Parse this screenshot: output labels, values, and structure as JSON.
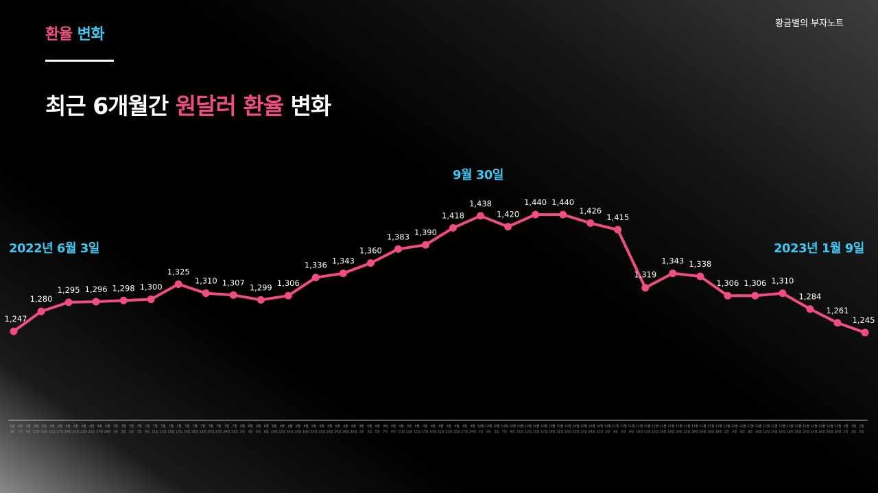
{
  "header": {
    "tag_part1": "환율",
    "tag_part2": "변화",
    "brand": "황금별의 부자노트",
    "title_part1": "최근 6개월간",
    "title_part2": "원달러 환율",
    "title_part3": "변화"
  },
  "callouts": {
    "start": "2022년 6월 3일",
    "peak": "9월 30일",
    "end": "2023년 1월 9일"
  },
  "colors": {
    "line": "#f04d86",
    "accent": "#3ec8f2"
  },
  "chart_data": {
    "type": "line",
    "title": "최근 6개월간 원달러 환율 변화",
    "values": [
      1247,
      1280,
      1295,
      1296,
      1298,
      1300,
      1325,
      1310,
      1307,
      1299,
      1306,
      1336,
      1343,
      1360,
      1383,
      1390,
      1418,
      1438,
      1420,
      1440,
      1440,
      1426,
      1415,
      1319,
      1343,
      1338,
      1306,
      1306,
      1310,
      1284,
      1261,
      1245
    ],
    "data_labels": [
      "1,247",
      "1,280",
      "1,295",
      "1,296",
      "1,298",
      "1,300",
      "1,325",
      "1,310",
      "1,307",
      "1,299",
      "1,306",
      "1,336",
      "1,343",
      "1,360",
      "1,383",
      "1,390",
      "1,418",
      "1,438",
      "1,420",
      "1,440",
      "1,440",
      "1,426",
      "1,415",
      "1,319",
      "1,343",
      "1,338",
      "1,306",
      "1,306",
      "1,310",
      "1,284",
      "1,261",
      "1,245"
    ],
    "first_date": "2022년 6월 3일",
    "last_date": "2023년 1월 9일",
    "x_axis_ticks": [
      "6월 3일",
      "6월 7일",
      "6월 9일",
      "6월 11일",
      "6월 13일",
      "6월 15일",
      "6월 17일",
      "6월 19일",
      "6월 21일",
      "6월 23일",
      "6월 25일",
      "6월 27일",
      "6월 29일",
      "7월 1일",
      "7월 3일",
      "7월 5일",
      "7월 7일",
      "7월 9일",
      "7월 11일",
      "7월 13일",
      "7월 15일",
      "7월 17일",
      "7월 19일",
      "7월 21일",
      "7월 23일",
      "7월 25일",
      "7월 27일",
      "7월 29일",
      "7월 31일",
      "8월 2일",
      "8월 4일",
      "8월 6일",
      "8월 8일",
      "8월 10일",
      "8월 12일",
      "8월 14일",
      "8월 16일",
      "8월 18일",
      "8월 20일",
      "8월 22일",
      "8월 24일",
      "8월 26일",
      "8월 28일",
      "8월 30일",
      "9월 1일",
      "9월 3일",
      "9월 5일",
      "9월 7일",
      "9월 9일",
      "9월 11일",
      "9월 13일",
      "9월 15일",
      "9월 17일",
      "9월 19일",
      "9월 21일",
      "9월 23일",
      "9월 25일",
      "9월 27일",
      "9월 29일",
      "10월 1일",
      "10월 3일",
      "10월 5일",
      "10월 7일",
      "10월 9일",
      "10월 11일",
      "10월 13일",
      "10월 15일",
      "10월 17일",
      "10월 19일",
      "10월 21일",
      "10월 23일",
      "10월 25일",
      "10월 27일",
      "10월 29일",
      "10월 31일",
      "11월 2일",
      "11월 4일",
      "11월 6일",
      "11월 8일",
      "11월 10일",
      "11월 12일",
      "11월 14일",
      "11월 16일",
      "11월 18일",
      "11월 20일",
      "11월 22일",
      "11월 24일",
      "11월 26일",
      "11월 28일",
      "11월 30일",
      "12월 2일",
      "12월 4일",
      "12월 6일",
      "12월 8일",
      "12월 10일",
      "12월 12일",
      "12월 14일",
      "12월 16일",
      "12월 18일",
      "12월 20일",
      "12월 22일",
      "12월 24일",
      "12월 26일",
      "12월 28일",
      "12월 30일",
      "1월 1일",
      "1월 3일",
      "1월 5일"
    ],
    "grid": false,
    "legend": "none"
  }
}
